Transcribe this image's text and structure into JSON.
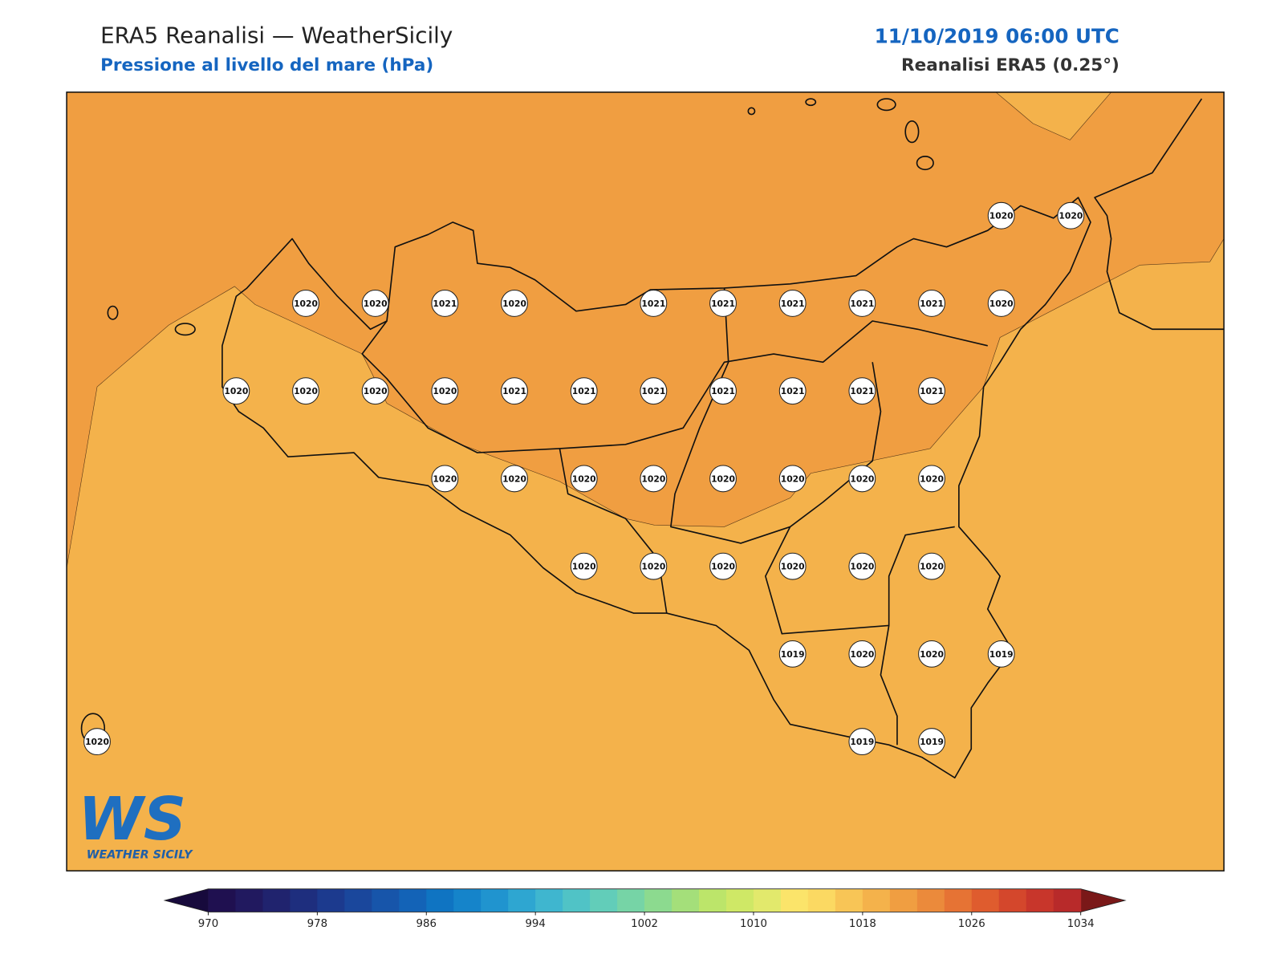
{
  "header": {
    "title": "ERA5 Reanalisi — WeatherSicily",
    "subtitle": "Pressione al livello del mare (hPa)",
    "datetime": "11/10/2019 06:00 UTC",
    "source": "Reanalisi ERA5 (0.25°)"
  },
  "stations": {
    "rows": [
      [
        null,
        null,
        null,
        null,
        null,
        null,
        null,
        null,
        null,
        null,
        null,
        null,
        null,
        1020,
        1020
      ],
      [
        null,
        null,
        null,
        1020,
        1020,
        1021,
        1020,
        null,
        1021,
        1021,
        1021,
        1021,
        1021,
        1020,
        null
      ],
      [
        null,
        null,
        1020,
        1020,
        1020,
        1020,
        1021,
        1021,
        1021,
        1021,
        1021,
        1021,
        1021,
        null,
        null
      ],
      [
        null,
        null,
        null,
        null,
        null,
        1020,
        1020,
        1020,
        1020,
        1020,
        1020,
        1020,
        1020,
        null,
        null
      ],
      [
        null,
        null,
        null,
        null,
        null,
        null,
        null,
        1020,
        1020,
        1020,
        1020,
        1020,
        1020,
        null,
        null
      ],
      [
        null,
        null,
        null,
        null,
        null,
        null,
        null,
        null,
        null,
        null,
        1019,
        1020,
        1020,
        1019,
        null
      ],
      [
        1020,
        null,
        null,
        null,
        null,
        null,
        null,
        null,
        null,
        null,
        null,
        1019,
        1019,
        null,
        null
      ]
    ]
  },
  "colorbar": {
    "range": [
      970,
      1034
    ],
    "ticks": [
      970,
      978,
      986,
      994,
      1002,
      1010,
      1018,
      1026,
      1034
    ],
    "colors": [
      "#1f1050",
      "#21195f",
      "#20236e",
      "#1e2e7e",
      "#1c3a8e",
      "#1a479c",
      "#1755aa",
      "#1363b7",
      "#0f74c2",
      "#1584ca",
      "#2094cf",
      "#2ea6d1",
      "#3fb6cf",
      "#50c3c6",
      "#62cdb9",
      "#76d4a6",
      "#8cda8f",
      "#a4df7a",
      "#bce56a",
      "#cfe866",
      "#e2e96c",
      "#fbe46a",
      "#fbd962",
      "#f8c556",
      "#f4b24b",
      "#f09e41",
      "#eb8a3b",
      "#e67334",
      "#df5c2e",
      "#d4472c",
      "#c8362b",
      "#b82a2a"
    ],
    "extend_colors": [
      "#170a3c",
      "#7a1818"
    ]
  },
  "logo": {
    "text": "WS",
    "subtitle": "WEATHER SICILY"
  }
}
